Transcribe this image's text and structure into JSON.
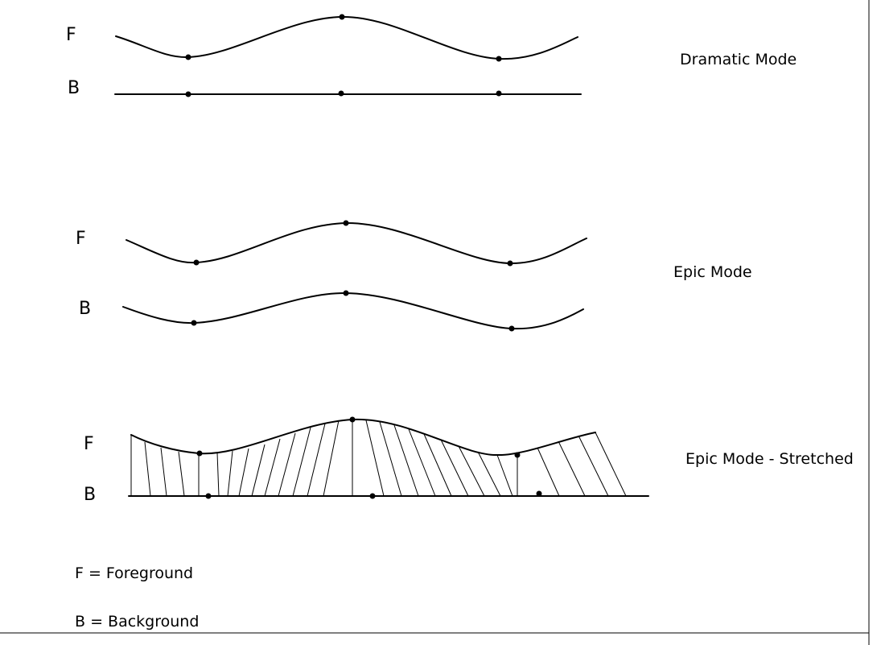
{
  "colors": {
    "stroke": "#000000",
    "background": "#ffffff"
  },
  "panels": {
    "dramatic": {
      "foreground_label": "F",
      "background_label": "B",
      "title": "Dramatic Mode"
    },
    "epic": {
      "foreground_label": "F",
      "background_label": "B",
      "title": "Epic Mode"
    },
    "stretched": {
      "foreground_label": "F",
      "background_label": "B",
      "title": "Epic Mode - Stretched"
    }
  },
  "legend": {
    "foreground": "F = Foreground",
    "background": "B = Background"
  }
}
